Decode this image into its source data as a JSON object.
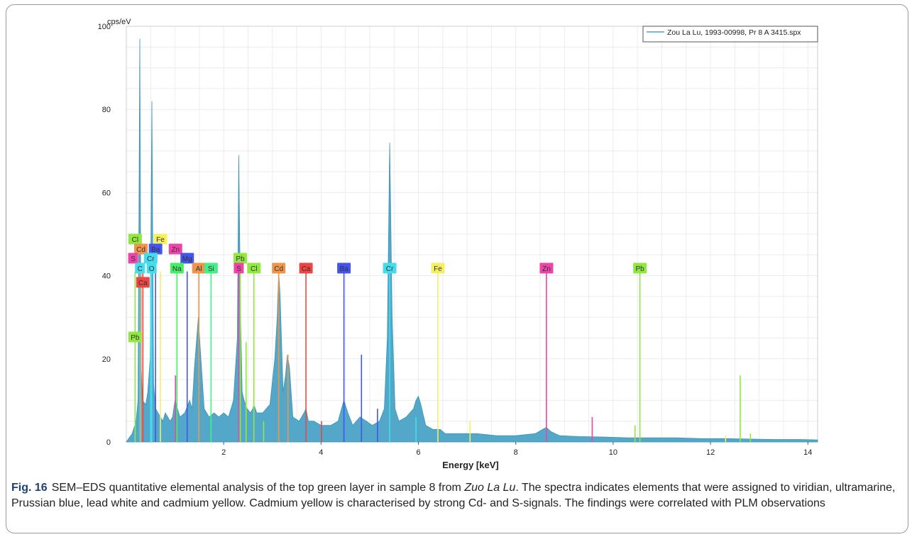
{
  "chart_data": {
    "type": "line",
    "ylabel": "cps/eV",
    "xlabel": "Energy [keV]",
    "xlim": [
      0,
      14.2
    ],
    "ylim": [
      0,
      100
    ],
    "x_ticks": [
      2,
      4,
      6,
      8,
      10,
      12,
      14
    ],
    "y_ticks": [
      0,
      20,
      40,
      60,
      80,
      100
    ],
    "grid": true,
    "legend_position": "top-right",
    "series": [
      {
        "name": "Zou La Lu, 1993-00998, Pr 8 A 3415.spx",
        "color": "#4aa3c6",
        "x": [
          0.0,
          0.12,
          0.2,
          0.24,
          0.277,
          0.3,
          0.33,
          0.4,
          0.44,
          0.49,
          0.525,
          0.56,
          0.6,
          0.7,
          0.75,
          0.8,
          0.9,
          0.95,
          1.0,
          1.1,
          1.2,
          1.3,
          1.35,
          1.4,
          1.48,
          1.52,
          1.6,
          1.7,
          1.8,
          1.9,
          2.0,
          2.1,
          2.2,
          2.28,
          2.31,
          2.35,
          2.38,
          2.42,
          2.48,
          2.55,
          2.6,
          2.62,
          2.68,
          2.8,
          2.95,
          3.05,
          3.1,
          3.13,
          3.16,
          3.22,
          3.27,
          3.31,
          3.35,
          3.42,
          3.55,
          3.65,
          3.69,
          3.74,
          3.85,
          4.0,
          4.2,
          4.35,
          4.42,
          4.47,
          4.55,
          4.65,
          4.8,
          4.93,
          5.05,
          5.2,
          5.3,
          5.36,
          5.41,
          5.46,
          5.52,
          5.6,
          5.75,
          5.9,
          5.95,
          6.0,
          6.05,
          6.15,
          6.3,
          6.4,
          6.45,
          6.55,
          6.8,
          7.2,
          7.6,
          8.0,
          8.4,
          8.55,
          8.63,
          8.72,
          8.9,
          9.3,
          9.8,
          10.3,
          10.8,
          11.3,
          11.8,
          12.3,
          12.8,
          13.3,
          13.8,
          14.2
        ],
        "y": [
          0,
          2,
          5,
          10,
          97,
          20,
          10,
          9,
          12,
          20,
          82,
          14,
          8,
          6,
          5,
          7,
          5,
          6,
          10,
          6,
          7,
          10,
          8,
          18,
          30,
          22,
          8,
          6,
          7,
          6,
          7,
          6,
          10,
          25,
          69,
          28,
          12,
          10,
          8,
          7,
          8,
          9,
          7,
          7,
          9,
          20,
          30,
          41,
          35,
          12,
          16,
          21,
          18,
          6,
          5,
          7,
          8,
          5,
          5,
          4,
          4,
          5,
          8,
          10,
          7,
          4,
          6,
          5,
          4,
          5,
          8,
          25,
          72,
          30,
          8,
          5,
          6,
          8,
          10,
          11,
          9,
          4,
          3,
          3,
          3,
          2,
          2,
          2,
          1.5,
          1.5,
          2,
          3,
          3.5,
          2.5,
          1.5,
          1.3,
          1.2,
          1,
          1,
          1,
          0.8,
          0.8,
          0.7,
          0.6,
          0.6,
          0.5
        ]
      }
    ],
    "element_labels": [
      {
        "text": "Cl",
        "energy": 0.18,
        "level": 1,
        "color": "#90e840"
      },
      {
        "text": "Fe",
        "energy": 0.7,
        "level": 1,
        "color": "#f4f060"
      },
      {
        "text": "Cd",
        "energy": 0.3,
        "level": 2,
        "color": "#f0944a"
      },
      {
        "text": "Ba",
        "energy": 0.6,
        "level": 2,
        "color": "#4455ee"
      },
      {
        "text": "Zn",
        "energy": 1.01,
        "level": 2,
        "color": "#ee44aa"
      },
      {
        "text": "S",
        "energy": 0.14,
        "level": 3,
        "color": "#ee44aa"
      },
      {
        "text": "Cr",
        "energy": 0.5,
        "level": 3,
        "color": "#44ddee"
      },
      {
        "text": "Mg",
        "energy": 1.25,
        "level": 3,
        "color": "#4455ee"
      },
      {
        "text": "Pb",
        "energy": 2.34,
        "level": 3,
        "color": "#90e840"
      },
      {
        "text": "C",
        "energy": 0.28,
        "level": 4,
        "color": "#44ddee"
      },
      {
        "text": "O",
        "energy": 0.52,
        "level": 4,
        "color": "#44ddee"
      },
      {
        "text": "Na",
        "energy": 1.04,
        "level": 4,
        "color": "#44ee66"
      },
      {
        "text": "Al",
        "energy": 1.49,
        "level": 4,
        "color": "#f0944a"
      },
      {
        "text": "Si",
        "energy": 1.74,
        "level": 4,
        "color": "#44ee88"
      },
      {
        "text": "S",
        "energy": 2.31,
        "level": 4,
        "color": "#ee44aa"
      },
      {
        "text": "Cl",
        "energy": 2.62,
        "level": 4,
        "color": "#90e840"
      },
      {
        "text": "Cd",
        "energy": 3.13,
        "level": 4,
        "color": "#f0944a"
      },
      {
        "text": "Ca",
        "energy": 3.69,
        "level": 4,
        "color": "#ee4444"
      },
      {
        "text": "Ba",
        "energy": 4.47,
        "level": 4,
        "color": "#4455ee"
      },
      {
        "text": "Cr",
        "energy": 5.41,
        "level": 4,
        "color": "#44ddee"
      },
      {
        "text": "Fe",
        "energy": 6.4,
        "level": 4,
        "color": "#f4f060"
      },
      {
        "text": "Zn",
        "energy": 8.63,
        "level": 4,
        "color": "#ee44aa"
      },
      {
        "text": "Pb",
        "energy": 10.55,
        "level": 4,
        "color": "#90e840"
      },
      {
        "text": "Ca",
        "energy": 0.34,
        "level": 5,
        "color": "#ee4444"
      },
      {
        "text": "Pb",
        "energy": 0.18,
        "level": 6,
        "color": "#90e840"
      }
    ],
    "element_lines": [
      {
        "energy": 0.18,
        "height": 41,
        "color": "#90e840"
      },
      {
        "energy": 0.28,
        "height": 41,
        "color": "#44ddee"
      },
      {
        "energy": 0.3,
        "height": 41,
        "color": "#f0944a"
      },
      {
        "energy": 0.34,
        "height": 41,
        "color": "#ee4444"
      },
      {
        "energy": 0.5,
        "height": 41,
        "color": "#44ddee"
      },
      {
        "energy": 0.52,
        "height": 41,
        "color": "#44ddee"
      },
      {
        "energy": 0.6,
        "height": 41,
        "color": "#4455ee"
      },
      {
        "energy": 0.7,
        "height": 41,
        "color": "#f4f060"
      },
      {
        "energy": 1.01,
        "height": 16,
        "color": "#ee44aa"
      },
      {
        "energy": 1.04,
        "height": 41,
        "color": "#44ee66"
      },
      {
        "energy": 1.25,
        "height": 41,
        "color": "#4455ee"
      },
      {
        "energy": 1.49,
        "height": 41,
        "color": "#f0944a"
      },
      {
        "energy": 1.74,
        "height": 41,
        "color": "#44ee88"
      },
      {
        "energy": 2.31,
        "height": 41,
        "color": "#ee44aa"
      },
      {
        "energy": 2.34,
        "height": 41,
        "color": "#90e840"
      },
      {
        "energy": 2.46,
        "height": 24,
        "color": "#90e840"
      },
      {
        "energy": 2.62,
        "height": 41,
        "color": "#90e840"
      },
      {
        "energy": 2.82,
        "height": 5,
        "color": "#90e840"
      },
      {
        "energy": 3.13,
        "height": 41,
        "color": "#f0944a"
      },
      {
        "energy": 3.32,
        "height": 21,
        "color": "#f0944a"
      },
      {
        "energy": 3.69,
        "height": 41,
        "color": "#ee4444"
      },
      {
        "energy": 4.01,
        "height": 5,
        "color": "#ee4444"
      },
      {
        "energy": 4.47,
        "height": 41,
        "color": "#4455ee"
      },
      {
        "energy": 4.83,
        "height": 21,
        "color": "#4455ee"
      },
      {
        "energy": 5.16,
        "height": 8,
        "color": "#4455ee"
      },
      {
        "energy": 5.41,
        "height": 41,
        "color": "#44ddee"
      },
      {
        "energy": 5.95,
        "height": 6,
        "color": "#44ddee"
      },
      {
        "energy": 6.4,
        "height": 41,
        "color": "#f4f060"
      },
      {
        "energy": 7.06,
        "height": 5,
        "color": "#f4f060"
      },
      {
        "energy": 8.63,
        "height": 41,
        "color": "#ee44aa"
      },
      {
        "energy": 9.57,
        "height": 6,
        "color": "#ee44aa"
      },
      {
        "energy": 10.45,
        "height": 4,
        "color": "#90e840"
      },
      {
        "energy": 10.55,
        "height": 41,
        "color": "#90e840"
      },
      {
        "energy": 12.61,
        "height": 16,
        "color": "#90e840"
      },
      {
        "energy": 12.31,
        "height": 1.5,
        "color": "#f4f060"
      },
      {
        "energy": 12.82,
        "height": 2,
        "color": "#90e840"
      }
    ]
  },
  "caption": {
    "figure": "Fig. 16",
    "text_before": "SEM–EDS quantitative elemental analysis of the top green layer in sample 8 from ",
    "italic": "Zuo La Lu",
    "text_after": ". The spectra indicates elements that were assigned to viridian, ultramarine, Prussian blue, lead white and cadmium yellow. Cadmium yellow is characterised by strong Cd- and S-signals. The findings were correlated with PLM observations"
  }
}
